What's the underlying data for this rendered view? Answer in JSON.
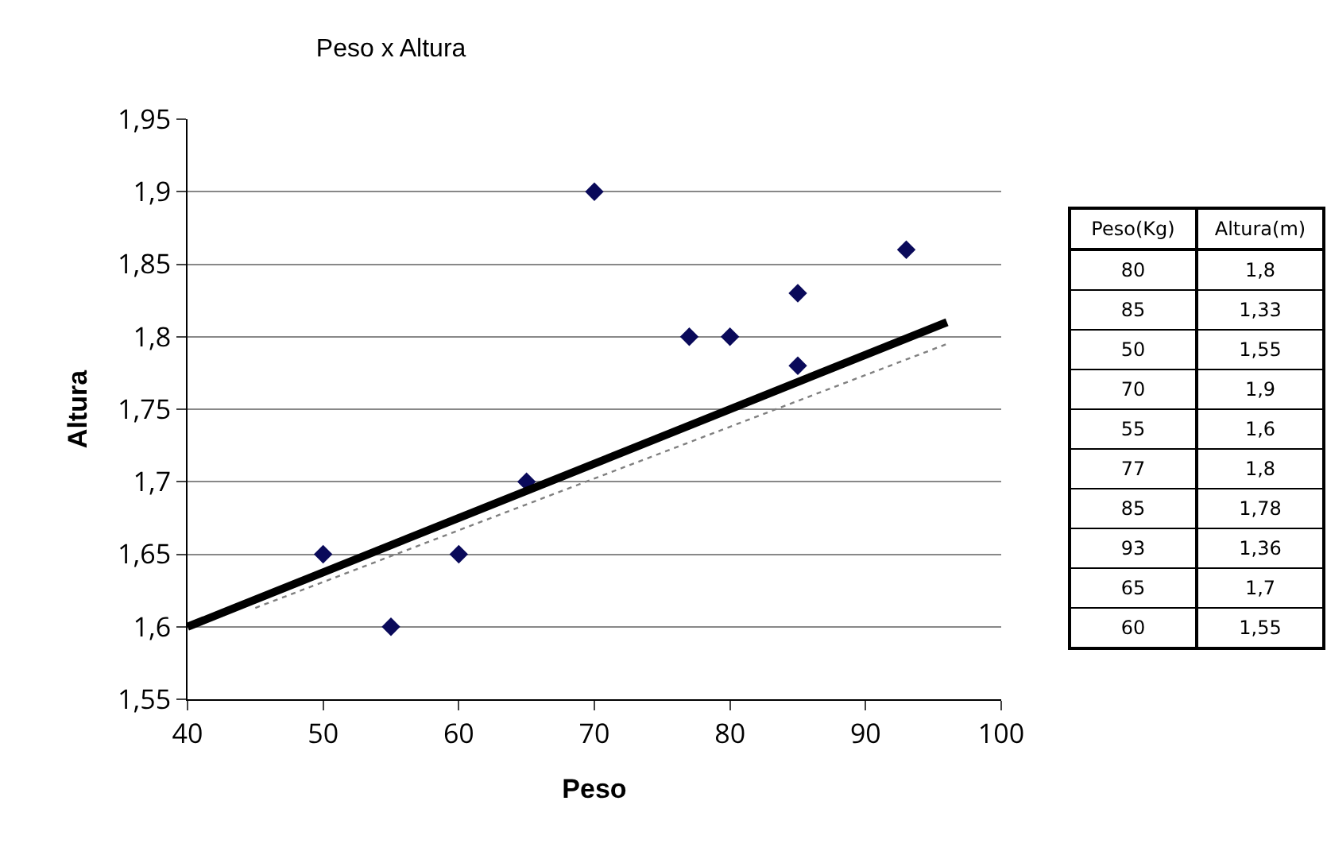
{
  "chart_data": {
    "type": "scatter",
    "title": "Peso x Altura",
    "xlabel": "Peso",
    "ylabel": "Altura",
    "xlim": [
      40,
      100
    ],
    "xticks": [
      40,
      50,
      60,
      70,
      80,
      90,
      100
    ],
    "ylim": [
      1.55,
      1.95
    ],
    "yticks": [
      {
        "value": 1.55,
        "label": "1,55"
      },
      {
        "value": 1.6,
        "label": "1,6"
      },
      {
        "value": 1.65,
        "label": "1,65"
      },
      {
        "value": 1.7,
        "label": "1,7"
      },
      {
        "value": 1.75,
        "label": "1,75"
      },
      {
        "value": 1.8,
        "label": "1,8"
      },
      {
        "value": 1.85,
        "label": "1,85"
      },
      {
        "value": 1.9,
        "label": "1,9"
      },
      {
        "value": 1.95,
        "label": "1,95"
      }
    ],
    "grid": "y",
    "series": [
      {
        "color": "#0a0a5a",
        "marker": "diamond",
        "x": [
          80,
          85,
          50,
          70,
          55,
          77,
          85,
          93,
          65,
          60
        ],
        "values": [
          1.8,
          1.83,
          1.65,
          1.9,
          1.6,
          1.8,
          1.78,
          1.86,
          1.7,
          1.65
        ]
      },
      {
        "type": "line",
        "color": "#000000",
        "line_style": "solid",
        "x": [
          40,
          96
        ],
        "values": [
          1.6,
          1.81
        ]
      },
      {
        "type": "line",
        "color": "#808080",
        "line_style": "dotted",
        "x": [
          45,
          96
        ],
        "values": [
          1.613,
          1.795
        ]
      }
    ],
    "annotations": [
      "Peso(Kg)",
      "Altura(m)",
      "80",
      "1,8",
      "85",
      "1,33",
      "50",
      "1,55",
      "70",
      "1,9",
      "55",
      "1,6",
      "77",
      "1,8",
      "85",
      "1,78",
      "93",
      "1,36",
      "65",
      "1,7",
      "60",
      "1,55"
    ]
  }
}
